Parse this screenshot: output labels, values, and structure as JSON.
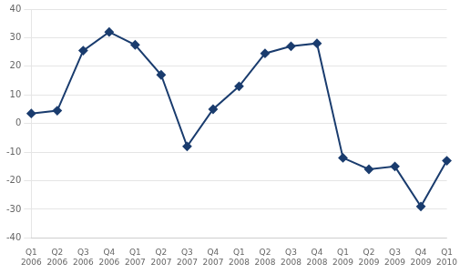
{
  "chart_data": {
    "type": "line",
    "categories": [
      [
        "Q1",
        "2006"
      ],
      [
        "Q2",
        "2006"
      ],
      [
        "Q3",
        "2006"
      ],
      [
        "Q4",
        "2006"
      ],
      [
        "Q1",
        "2007"
      ],
      [
        "Q2",
        "2007"
      ],
      [
        "Q3",
        "2007"
      ],
      [
        "Q4",
        "2007"
      ],
      [
        "Q1",
        "2008"
      ],
      [
        "Q2",
        "2008"
      ],
      [
        "Q3",
        "2008"
      ],
      [
        "Q4",
        "2008"
      ],
      [
        "Q1",
        "2009"
      ],
      [
        "Q2",
        "2009"
      ],
      [
        "Q3",
        "2009"
      ],
      [
        "Q4",
        "2009"
      ],
      [
        "Q1",
        "2010"
      ]
    ],
    "values": [
      3.5,
      4.5,
      25.5,
      32.0,
      27.5,
      17.0,
      -8.0,
      5.0,
      13.0,
      24.5,
      27.0,
      28.0,
      -12.0,
      -16.0,
      -15.0,
      -29.0,
      -13.0
    ],
    "color": "#1a3c6e",
    "marker": "diamond",
    "ylim": [
      -40,
      40
    ],
    "yticks": [
      -40,
      -30,
      -20,
      -10,
      0,
      10,
      20,
      30,
      40
    ],
    "grid": "y"
  }
}
